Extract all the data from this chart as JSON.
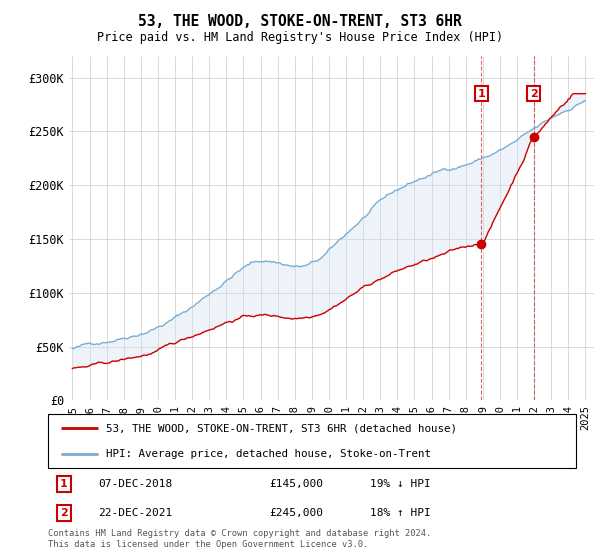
{
  "title": "53, THE WOOD, STOKE-ON-TRENT, ST3 6HR",
  "subtitle": "Price paid vs. HM Land Registry's House Price Index (HPI)",
  "ylim": [
    0,
    320000
  ],
  "yticks": [
    0,
    50000,
    100000,
    150000,
    200000,
    250000,
    300000
  ],
  "ytick_labels": [
    "£0",
    "£50K",
    "£100K",
    "£150K",
    "£200K",
    "£250K",
    "£300K"
  ],
  "xlabel_start_year": 1995,
  "xlabel_end_year": 2025,
  "legend_line1": "53, THE WOOD, STOKE-ON-TRENT, ST3 6HR (detached house)",
  "legend_line2": "HPI: Average price, detached house, Stoke-on-Trent",
  "annotation1_label": "1",
  "annotation1_date": "07-DEC-2018",
  "annotation1_price": "£145,000",
  "annotation1_hpi": "19% ↓ HPI",
  "annotation2_label": "2",
  "annotation2_date": "22-DEC-2021",
  "annotation2_price": "£245,000",
  "annotation2_hpi": "18% ↑ HPI",
  "footer": "Contains HM Land Registry data © Crown copyright and database right 2024.\nThis data is licensed under the Open Government Licence v3.0.",
  "red_line_color": "#cc0000",
  "blue_line_color": "#7aadd4",
  "shade_color": "#ccdff0",
  "annotation_box_color": "#cc0000",
  "grid_color": "#cccccc",
  "background_color": "#ffffff"
}
